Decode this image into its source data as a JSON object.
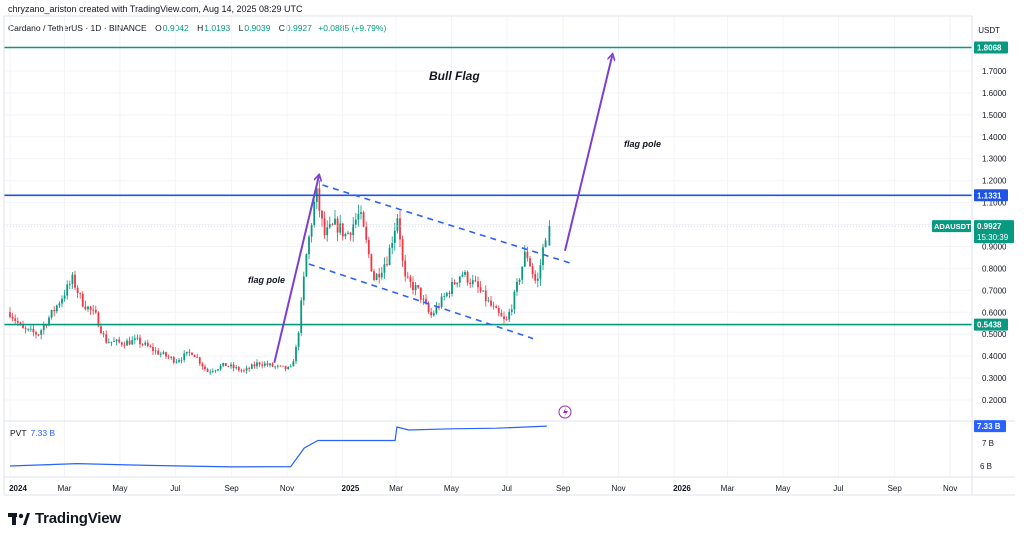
{
  "header": {
    "creator_line": "chryzano_ariston created with TradingView.com, Aug 14, 2025 08:29 UTC",
    "symbol": "Cardano / TetherUS · 1D · BINANCE",
    "open_label": "O",
    "open": "0.9042",
    "high_label": "H",
    "high": "1.0193",
    "low_label": "L",
    "low": "0.9039",
    "close_label": "C",
    "close": "0.9927",
    "change": "+0.0885 (+9.79%)",
    "currency": "USDT"
  },
  "annotations": {
    "title": "Bull Flag",
    "flag_pole_1": "flag pole",
    "flag_pole_2": "flag pole"
  },
  "price_tags": {
    "top": "1.8068",
    "resistance": "1.1331",
    "ticker": "ADAUSDT",
    "last": "0.9927",
    "countdown": "15:30:39",
    "support": "0.5438"
  },
  "pvt": {
    "label": "PVT",
    "value": "7.33 B",
    "tag": "7.33 B",
    "tick_7b": "7 B",
    "tick_6b": "6 B"
  },
  "logo": {
    "text": "TradingView"
  },
  "colors": {
    "up": "#089981",
    "down": "#f23645",
    "horizontal": "#089981",
    "resistance": "#1e53e5",
    "flag_channel": "#2962ff",
    "arrow": "#7e3fd1",
    "pvt": "#2962ff",
    "text": "#131722"
  },
  "chart_data": {
    "type": "candlestick",
    "y_axis_ticks": [
      "1.7000",
      "1.6000",
      "1.5000",
      "1.4000",
      "1.3000",
      "1.2000",
      "1.1000",
      "1.0000",
      "0.9000",
      "0.8000",
      "0.7000",
      "0.6000",
      "0.5000",
      "0.4000",
      "0.3000",
      "0.2000"
    ],
    "x_axis_ticks": [
      "2024",
      "Mar",
      "May",
      "Jul",
      "Sep",
      "Nov",
      "2025",
      "Mar",
      "May",
      "Jul",
      "Sep",
      "Nov",
      "2026",
      "Mar",
      "May",
      "Jul",
      "Sep",
      "Nov"
    ],
    "horizontal_lines": [
      {
        "value": 1.8068,
        "color": "green"
      },
      {
        "value": 1.1331,
        "color": "blue"
      },
      {
        "value": 0.5438,
        "color": "green"
      }
    ],
    "price_path": [
      [
        "2024-01-01",
        0.6
      ],
      [
        "2024-01-15",
        0.52
      ],
      [
        "2024-02-01",
        0.5
      ],
      [
        "2024-02-20",
        0.62
      ],
      [
        "2024-03-10",
        0.75
      ],
      [
        "2024-03-20",
        0.65
      ],
      [
        "2024-04-05",
        0.58
      ],
      [
        "2024-04-15",
        0.47
      ],
      [
        "2024-05-01",
        0.46
      ],
      [
        "2024-05-20",
        0.47
      ],
      [
        "2024-06-10",
        0.42
      ],
      [
        "2024-07-01",
        0.38
      ],
      [
        "2024-07-20",
        0.42
      ],
      [
        "2024-08-05",
        0.33
      ],
      [
        "2024-08-25",
        0.36
      ],
      [
        "2024-09-15",
        0.33
      ],
      [
        "2024-10-01",
        0.37
      ],
      [
        "2024-10-20",
        0.35
      ],
      [
        "2024-11-05",
        0.34
      ],
      [
        "2024-11-12",
        0.45
      ],
      [
        "2024-11-22",
        0.85
      ],
      [
        "2024-12-03",
        1.15
      ],
      [
        "2024-12-12",
        0.95
      ],
      [
        "2024-12-25",
        1.0
      ],
      [
        "2025-01-05",
        0.95
      ],
      [
        "2025-01-20",
        1.05
      ],
      [
        "2025-02-05",
        0.75
      ],
      [
        "2025-02-20",
        0.85
      ],
      [
        "2025-03-03",
        1.05
      ],
      [
        "2025-03-10",
        0.75
      ],
      [
        "2025-03-25",
        0.7
      ],
      [
        "2025-04-08",
        0.58
      ],
      [
        "2025-04-25",
        0.68
      ],
      [
        "2025-05-12",
        0.78
      ],
      [
        "2025-05-28",
        0.72
      ],
      [
        "2025-06-15",
        0.62
      ],
      [
        "2025-06-30",
        0.55
      ],
      [
        "2025-07-10",
        0.68
      ],
      [
        "2025-07-22",
        0.88
      ],
      [
        "2025-08-03",
        0.72
      ],
      [
        "2025-08-14",
        0.99
      ]
    ],
    "pvt_series": [
      [
        "2024-01-01",
        6.0
      ],
      [
        "2024-03-15",
        6.08
      ],
      [
        "2024-06-01",
        6.02
      ],
      [
        "2024-09-01",
        5.97
      ],
      [
        "2024-11-05",
        5.98
      ],
      [
        "2024-11-20",
        6.6
      ],
      [
        "2024-12-05",
        6.85
      ],
      [
        "2025-02-28",
        6.85
      ],
      [
        "2025-03-02",
        7.3
      ],
      [
        "2025-03-15",
        7.2
      ],
      [
        "2025-05-01",
        7.24
      ],
      [
        "2025-06-20",
        7.26
      ],
      [
        "2025-08-14",
        7.33
      ]
    ],
    "pvt_ticks": [
      "7 B",
      "6 B"
    ]
  }
}
